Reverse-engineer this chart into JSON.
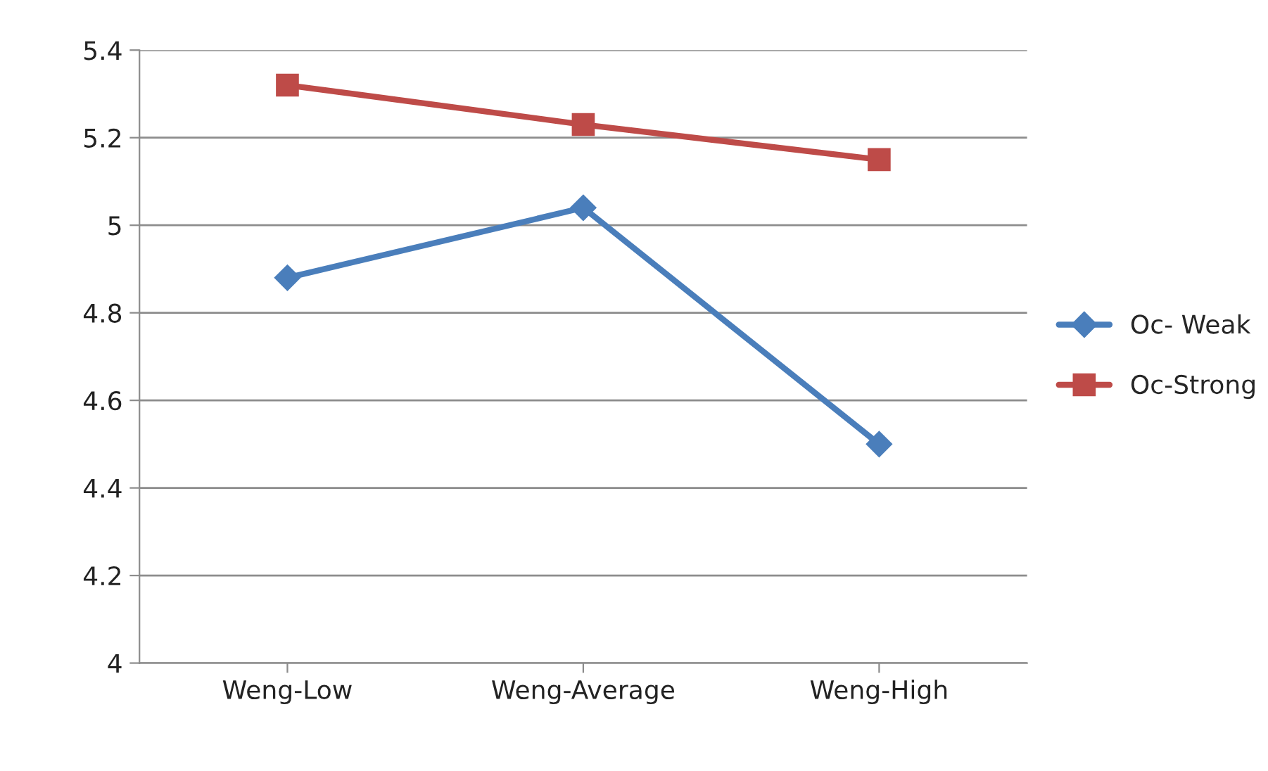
{
  "chart_data": {
    "type": "line",
    "categories": [
      "Weng-Low",
      "Weng-Average",
      "Weng-High"
    ],
    "series": [
      {
        "name": "Oc- Weak",
        "color": "#4a7ebb",
        "marker": "diamond",
        "values": [
          4.88,
          5.04,
          4.5
        ]
      },
      {
        "name": "Oc-Strong",
        "color": "#be4b48",
        "marker": "square",
        "values": [
          5.32,
          5.23,
          5.15
        ]
      }
    ],
    "ylim": [
      4,
      5.4
    ],
    "yticks": [
      4,
      4.2,
      4.4,
      4.6,
      4.8,
      5,
      5.2,
      5.4
    ],
    "grid": "y",
    "legend": "right",
    "line_style": "solid"
  }
}
